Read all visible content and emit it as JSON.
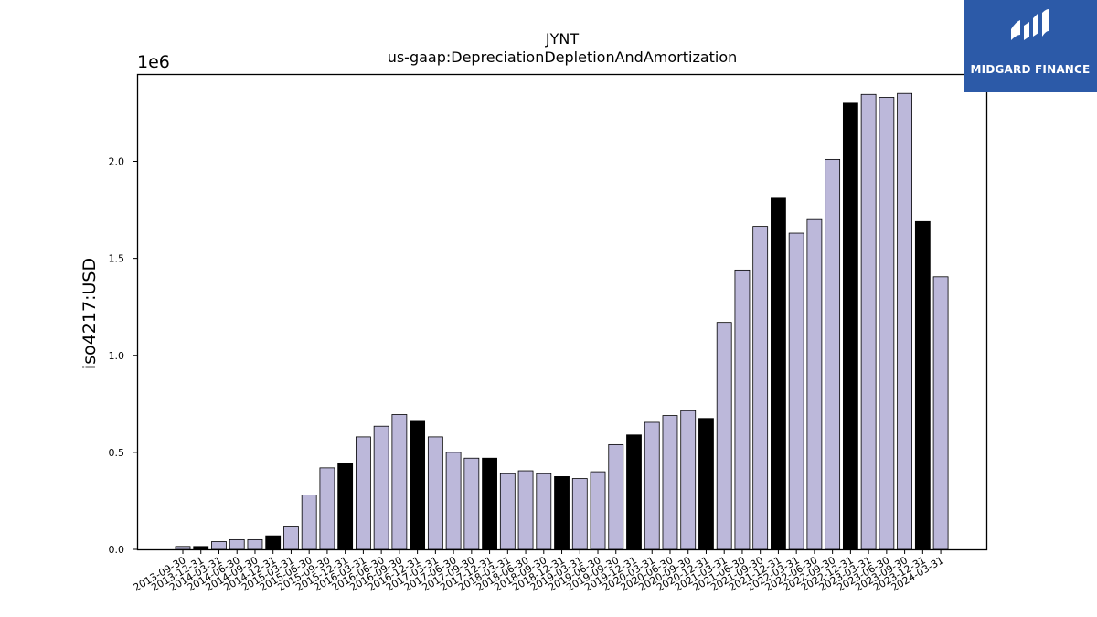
{
  "chart_data": {
    "type": "bar",
    "title": "JYNT",
    "subtitle": "us-gaap:DepreciationDepletionAndAmortization",
    "ylabel": "iso4217:USD",
    "y_multiplier": "1e6",
    "ylim": [
      0,
      2.45
    ],
    "yticks": [
      "0.0",
      "0.5",
      "1.0",
      "1.5",
      "2.0"
    ],
    "categories": [
      "2013-09-30",
      "2013-12-31",
      "2014-03-31",
      "2014-06-30",
      "2014-09-30",
      "2014-12-31",
      "2015-03-31",
      "2015-06-30",
      "2015-09-30",
      "2015-12-31",
      "2016-03-31",
      "2016-06-30",
      "2016-09-30",
      "2016-12-31",
      "2017-03-31",
      "2017-06-30",
      "2017-09-30",
      "2017-12-31",
      "2018-03-31",
      "2018-06-30",
      "2018-09-30",
      "2018-12-31",
      "2019-03-31",
      "2019-06-30",
      "2019-09-30",
      "2019-12-31",
      "2020-03-31",
      "2020-06-30",
      "2020-09-30",
      "2020-12-31",
      "2021-03-31",
      "2021-06-30",
      "2021-09-30",
      "2021-12-31",
      "2022-03-31",
      "2022-06-30",
      "2022-09-30",
      "2022-12-31",
      "2023-03-31",
      "2023-06-30",
      "2023-09-30",
      "2023-12-31",
      "2024-03-31"
    ],
    "values": [
      0.015,
      0.015,
      0.04,
      0.05,
      0.05,
      0.07,
      0.12,
      0.28,
      0.42,
      0.445,
      0.58,
      0.635,
      0.695,
      0.66,
      0.58,
      0.5,
      0.47,
      0.47,
      0.39,
      0.405,
      0.39,
      0.375,
      0.365,
      0.4,
      0.54,
      0.59,
      0.655,
      0.69,
      0.715,
      0.675,
      1.17,
      1.44,
      1.665,
      1.81,
      1.63,
      1.7,
      2.01,
      2.3,
      2.345,
      2.33,
      2.35,
      1.69,
      1.405
    ],
    "bar_colors": [
      "#bcb8da",
      "#000000",
      "#bcb8da",
      "#bcb8da",
      "#bcb8da",
      "#000000",
      "#bcb8da",
      "#bcb8da",
      "#bcb8da",
      "#000000",
      "#bcb8da",
      "#bcb8da",
      "#bcb8da",
      "#000000",
      "#bcb8da",
      "#bcb8da",
      "#bcb8da",
      "#000000",
      "#bcb8da",
      "#bcb8da",
      "#bcb8da",
      "#000000",
      "#bcb8da",
      "#bcb8da",
      "#bcb8da",
      "#000000",
      "#bcb8da",
      "#bcb8da",
      "#bcb8da",
      "#000000",
      "#bcb8da",
      "#bcb8da",
      "#bcb8da",
      "#000000",
      "#bcb8da",
      "#bcb8da",
      "#bcb8da",
      "#000000",
      "#bcb8da",
      "#bcb8da",
      "#bcb8da",
      "#000000",
      "#bcb8da"
    ],
    "grid": false,
    "legend": "none"
  },
  "logo": {
    "text": "MIDGARD FINANCE",
    "background": "#2c5aa8"
  }
}
